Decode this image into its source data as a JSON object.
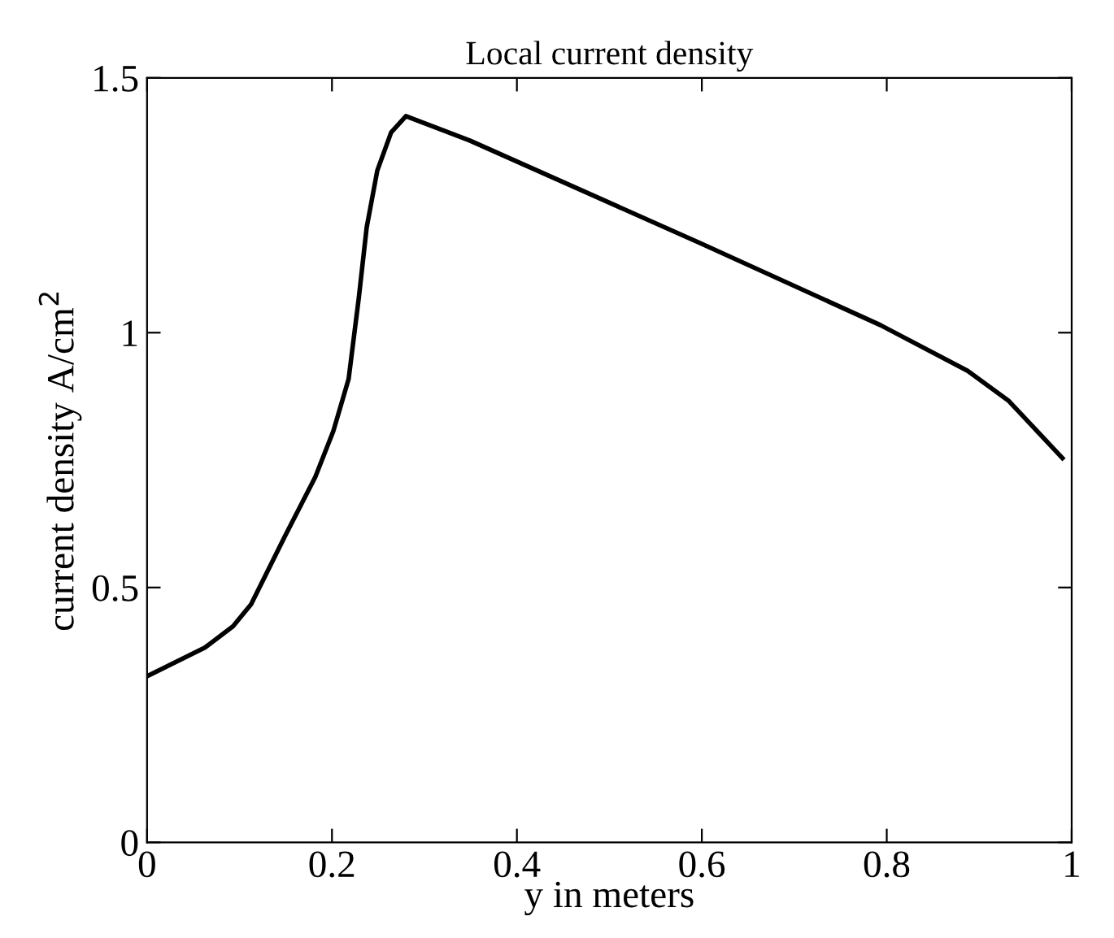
{
  "chart_data": {
    "type": "line",
    "title": "Local current density",
    "xlabel": "y in meters",
    "ylabel": "current density A/cm$^{2}$",
    "series": [
      {
        "color": "#000000",
        "x": [
          0,
          0.0625,
          0.093,
          0.1125,
          0.149,
          0.182,
          0.2015,
          0.218,
          0.229,
          0.2375,
          0.249,
          0.264,
          0.28,
          0.349,
          0.599,
          0.793,
          0.8875,
          0.932,
          0.99
        ],
        "values": [
          0.326,
          0.382,
          0.424,
          0.467,
          0.6,
          0.717,
          0.807,
          0.909,
          1.068,
          1.206,
          1.318,
          1.393,
          1.425,
          1.377,
          1.175,
          1.015,
          0.925,
          0.866,
          0.754
        ]
      }
    ],
    "xlim": [
      0,
      1
    ],
    "ylim": [
      0,
      1.5
    ],
    "xticks": [
      0,
      0.2,
      0.4,
      0.6,
      0.8,
      1
    ],
    "yticks": [
      0,
      0.5,
      1,
      1.5
    ],
    "grid": false,
    "marker": "none",
    "line_style": "solid"
  }
}
